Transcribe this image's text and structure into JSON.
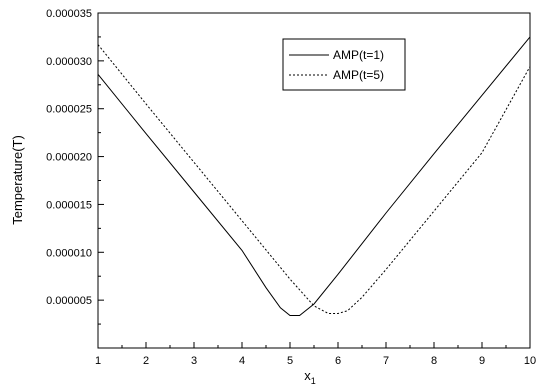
{
  "chart_data": {
    "type": "line",
    "title": "",
    "xlabel": "x",
    "xlabel_subscript": "1",
    "ylabel": "Temperature(T)",
    "xlim": [
      1,
      10
    ],
    "ylim": [
      0,
      3.5e-05
    ],
    "x_ticks": [
      1,
      2,
      3,
      4,
      5,
      6,
      7,
      8,
      9,
      10
    ],
    "y_ticks": [
      "0.000005",
      "0.000010",
      "0.000015",
      "0.000020",
      "0.000025",
      "0.000030",
      "0.000035"
    ],
    "grid": false,
    "legend_position": "top-right",
    "series": [
      {
        "name": "AMP(t=1)",
        "style": "solid",
        "color": "#000000",
        "x": [
          1.0,
          2.0,
          3.0,
          4.0,
          4.5,
          4.8,
          5.0,
          5.2,
          5.5,
          6.0,
          7.0,
          8.0,
          9.0,
          10.0
        ],
        "y": [
          2.86e-05,
          2.24e-05,
          1.63e-05,
          1.02e-05,
          6.3e-06,
          4.2e-06,
          3.4e-06,
          3.4e-06,
          4.6e-06,
          7.7e-06,
          1.41e-05,
          2.03e-05,
          2.64e-05,
          3.25e-05
        ]
      },
      {
        "name": "AMP(t=5)",
        "style": "dotted",
        "color": "#000000",
        "x": [
          1.0,
          2.0,
          3.0,
          4.0,
          5.0,
          5.5,
          5.8,
          6.0,
          6.2,
          6.5,
          7.0,
          8.0,
          9.0,
          10.0
        ],
        "y": [
          3.17e-05,
          2.55e-05,
          1.94e-05,
          1.33e-05,
          7.2e-06,
          4.4e-06,
          3.6e-06,
          3.6e-06,
          3.9e-06,
          5.3e-06,
          8.2e-06,
          1.43e-05,
          2.04e-05,
          2.94e-05
        ]
      }
    ]
  }
}
